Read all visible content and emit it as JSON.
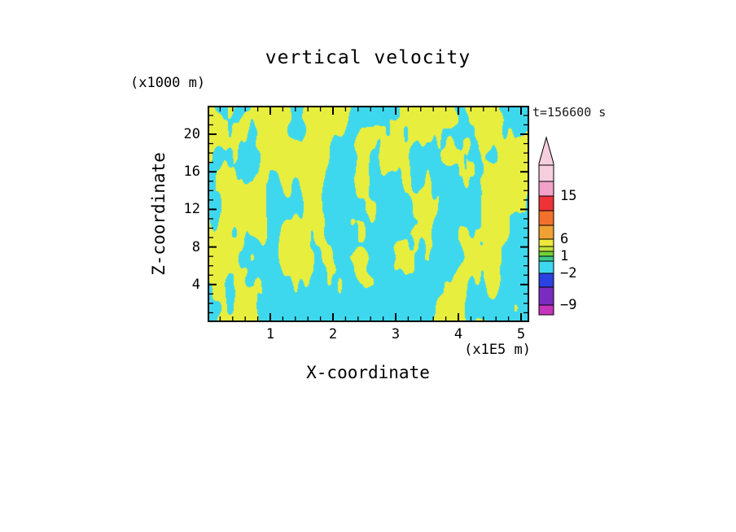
{
  "title": "vertical velocity",
  "chart_data": {
    "type": "heatmap",
    "title": "vertical velocity",
    "timestamp": "t=156600 s",
    "xlabel": "X-coordinate",
    "ylabel": "Z-coordinate",
    "x_unit": "(x1E5 m)",
    "y_unit": "(x1000 m)",
    "x_ticks": [
      1,
      2,
      3,
      4,
      5
    ],
    "y_ticks": [
      4,
      8,
      12,
      16,
      20
    ],
    "x_minor_step": 0.2,
    "y_minor_step": 1,
    "xlim": [
      0,
      5.13
    ],
    "ylim": [
      0,
      23.1
    ],
    "grid": false,
    "legend_position": "right-colorbar",
    "field": {
      "description": "two-tone turbulent vertical-velocity field: cyan = downdraft band (approx -2..0), yellow = updraft band (approx 0..1)",
      "negative_color": "#3ed8ee",
      "positive_color": "#e8ee3e",
      "noise_seed": 11,
      "noise_scale_x": 27,
      "noise_scale_y": 62,
      "octaves": 3,
      "octave_gain": 0.55
    },
    "colorbar": {
      "arrow_color": "#f6cede",
      "segments": [
        {
          "color": "#f6cede",
          "h": 20
        },
        {
          "color": "#f2a2c8",
          "h": 18
        },
        {
          "color": "#ee3237",
          "h": 18
        },
        {
          "color": "#f2702c",
          "h": 18
        },
        {
          "color": "#efa231",
          "h": 17
        },
        {
          "color": "#ece83d",
          "h": 9
        },
        {
          "color": "#c0e139",
          "h": 6
        },
        {
          "color": "#74d13b",
          "h": 6
        },
        {
          "color": "#3aca8c",
          "h": 6
        },
        {
          "color": "#3ed8ee",
          "h": 15
        },
        {
          "color": "#2c41e1",
          "h": 17
        },
        {
          "color": "#7a2cc0",
          "h": 22
        },
        {
          "color": "#c534ba",
          "h": 12
        }
      ],
      "labels": [
        {
          "text": "15",
          "after_segment": 1
        },
        {
          "text": "6",
          "after_segment": 4
        },
        {
          "text": "1",
          "after_segment": 7
        },
        {
          "text": "−2",
          "after_segment": 9
        },
        {
          "text": "−9",
          "after_segment": 11
        }
      ]
    }
  }
}
